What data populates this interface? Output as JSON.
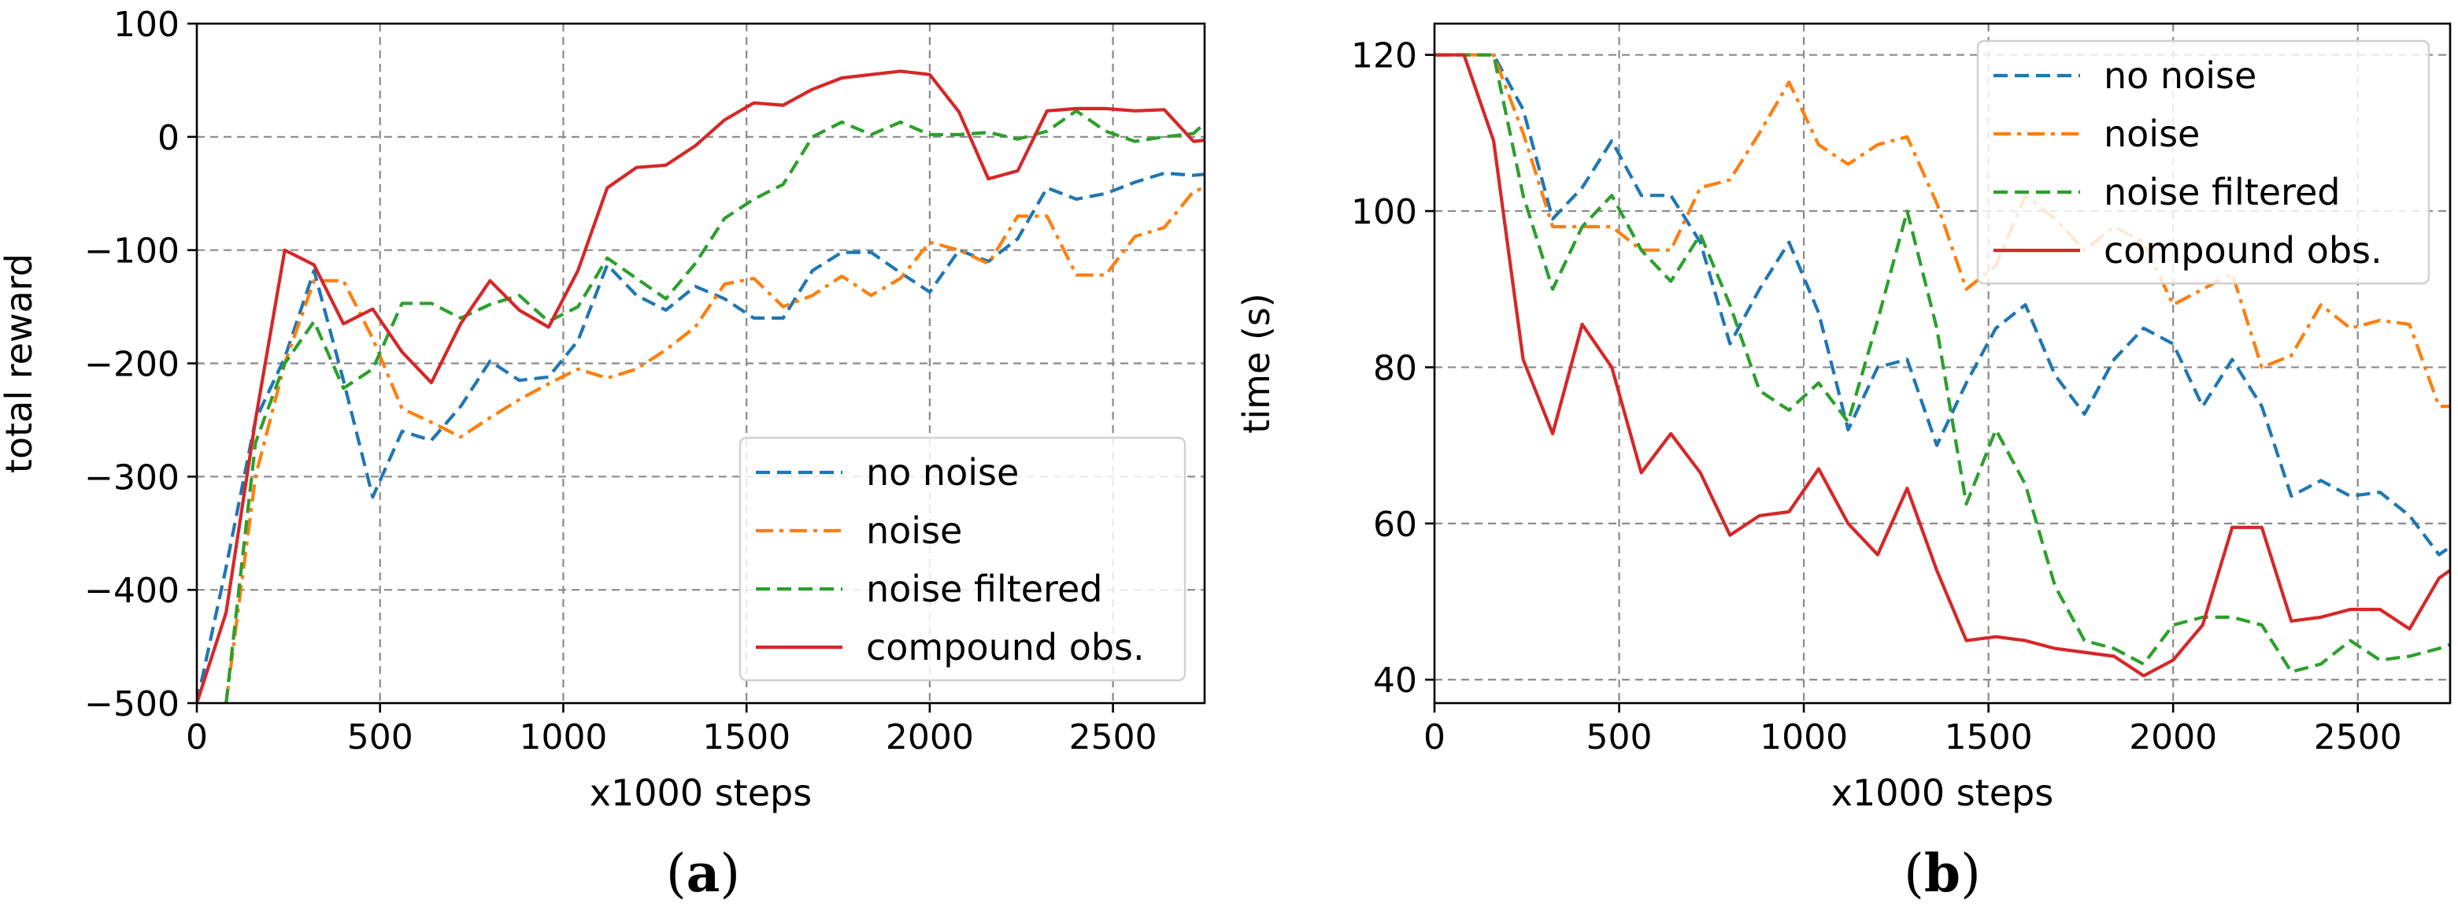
{
  "chart_data": [
    {
      "type": "line",
      "panel_label": "a",
      "title": "",
      "xlabel": "x1000 steps",
      "ylabel": "total reward",
      "xlim": [
        0,
        2750
      ],
      "ylim": [
        -500,
        100
      ],
      "xticks": [
        0,
        500,
        1000,
        1500,
        2000,
        2500
      ],
      "yticks": [
        -500,
        -400,
        -300,
        -200,
        -100,
        0,
        100
      ],
      "xtick_labels": [
        "0",
        "500",
        "1000",
        "1500",
        "2000",
        "2500"
      ],
      "ytick_labels": [
        "−500",
        "−400",
        "−300",
        "−200",
        "−100",
        "0",
        "100"
      ],
      "grid": true,
      "legend_position": "lower-right",
      "series": [
        {
          "name": "no noise",
          "color": "#1f77b4",
          "style": "dashed",
          "x": [
            0,
            80,
            160,
            240,
            320,
            400,
            480,
            560,
            640,
            720,
            800,
            880,
            960,
            1040,
            1120,
            1200,
            1280,
            1360,
            1440,
            1520,
            1600,
            1680,
            1760,
            1840,
            1920,
            2000,
            2080,
            2160,
            2240,
            2320,
            2400,
            2480,
            2560,
            2640,
            2720,
            2750
          ],
          "y": [
            -500,
            -380,
            -250,
            -195,
            -118,
            -215,
            -318,
            -260,
            -268,
            -238,
            -198,
            -215,
            -212,
            -180,
            -113,
            -140,
            -153,
            -132,
            -143,
            -160,
            -160,
            -118,
            -102,
            -102,
            -120,
            -137,
            -100,
            -110,
            -90,
            -45,
            -55,
            -50,
            -40,
            -32,
            -34,
            -33
          ]
        },
        {
          "name": "noise",
          "color": "#ff7f0e",
          "style": "dashdot",
          "x": [
            80,
            160,
            240,
            320,
            400,
            480,
            560,
            640,
            720,
            800,
            880,
            960,
            1040,
            1120,
            1200,
            1280,
            1360,
            1440,
            1520,
            1600,
            1680,
            1760,
            1840,
            1920,
            2000,
            2080,
            2160,
            2240,
            2320,
            2400,
            2480,
            2560,
            2640,
            2720,
            2750
          ],
          "y": [
            -500,
            -300,
            -200,
            -127,
            -127,
            -178,
            -240,
            -252,
            -265,
            -248,
            -232,
            -218,
            -205,
            -213,
            -205,
            -188,
            -168,
            -130,
            -125,
            -150,
            -140,
            -123,
            -140,
            -125,
            -93,
            -100,
            -112,
            -70,
            -70,
            -122,
            -122,
            -88,
            -80,
            -48,
            -45
          ]
        },
        {
          "name": "noise filtered",
          "color": "#2ca02c",
          "style": "dashed",
          "x": [
            80,
            160,
            240,
            320,
            400,
            480,
            560,
            640,
            720,
            800,
            880,
            960,
            1040,
            1120,
            1200,
            1280,
            1360,
            1440,
            1520,
            1600,
            1680,
            1760,
            1840,
            1920,
            2000,
            2080,
            2160,
            2240,
            2320,
            2400,
            2480,
            2560,
            2640,
            2720,
            2750
          ],
          "y": [
            -500,
            -270,
            -200,
            -163,
            -222,
            -205,
            -147,
            -147,
            -160,
            -148,
            -140,
            -163,
            -150,
            -107,
            -125,
            -143,
            -112,
            -72,
            -55,
            -42,
            0,
            13,
            2,
            13,
            2,
            2,
            4,
            -2,
            5,
            23,
            5,
            -4,
            0,
            3,
            12
          ]
        },
        {
          "name": "compound obs.",
          "color": "#d62728",
          "style": "solid",
          "x": [
            0,
            80,
            160,
            240,
            320,
            400,
            480,
            560,
            640,
            720,
            800,
            880,
            960,
            1040,
            1120,
            1200,
            1280,
            1360,
            1440,
            1520,
            1600,
            1680,
            1760,
            1840,
            1920,
            2000,
            2080,
            2160,
            2240,
            2320,
            2400,
            2480,
            2560,
            2640,
            2720,
            2750
          ],
          "y": [
            -500,
            -420,
            -250,
            -100,
            -113,
            -165,
            -152,
            -190,
            -217,
            -165,
            -127,
            -153,
            -168,
            -118,
            -45,
            -27,
            -25,
            -8,
            15,
            30,
            28,
            42,
            52,
            55,
            58,
            55,
            22,
            -37,
            -30,
            23,
            25,
            25,
            23,
            24,
            -4,
            -3
          ]
        }
      ]
    },
    {
      "type": "line",
      "panel_label": "b",
      "title": "",
      "xlabel": "x1000 steps",
      "ylabel": "time (s)",
      "xlim": [
        0,
        2750
      ],
      "ylim": [
        37,
        124
      ],
      "xticks": [
        0,
        500,
        1000,
        1500,
        2000,
        2500
      ],
      "yticks": [
        40,
        60,
        80,
        100,
        120
      ],
      "xtick_labels": [
        "0",
        "500",
        "1000",
        "1500",
        "2000",
        "2500"
      ],
      "ytick_labels": [
        "40",
        "60",
        "80",
        "100",
        "120"
      ],
      "grid": true,
      "legend_position": "top-right",
      "series": [
        {
          "name": "no noise",
          "color": "#1f77b4",
          "style": "dashed",
          "x": [
            0,
            80,
            160,
            240,
            320,
            400,
            480,
            560,
            640,
            720,
            800,
            880,
            960,
            1040,
            1120,
            1200,
            1280,
            1360,
            1440,
            1520,
            1600,
            1680,
            1760,
            1840,
            1920,
            2000,
            2080,
            2160,
            2240,
            2320,
            2400,
            2480,
            2560,
            2640,
            2720,
            2750
          ],
          "y": [
            120,
            120,
            120,
            113,
            99,
            103,
            109,
            102,
            102,
            96,
            83,
            90,
            96,
            87,
            72,
            80,
            81,
            70,
            78,
            85,
            88,
            79,
            74,
            81,
            85,
            83,
            75,
            81,
            75,
            63.5,
            65.5,
            63.5,
            64,
            61,
            56,
            57
          ]
        },
        {
          "name": "noise",
          "color": "#ff7f0e",
          "style": "dashdot",
          "x": [
            0,
            80,
            160,
            240,
            320,
            400,
            480,
            560,
            640,
            720,
            800,
            880,
            960,
            1040,
            1120,
            1200,
            1280,
            1360,
            1440,
            1520,
            1600,
            1680,
            1760,
            1840,
            1920,
            2000,
            2080,
            2160,
            2240,
            2320,
            2400,
            2480,
            2560,
            2640,
            2720,
            2750
          ],
          "y": [
            120,
            120,
            120,
            110,
            98,
            98,
            98,
            95,
            95,
            103,
            104,
            110,
            116.5,
            108.5,
            106,
            108.5,
            109.5,
            101,
            90,
            93,
            102,
            99,
            95,
            98,
            96,
            88,
            90,
            92,
            80,
            81.5,
            88,
            85,
            86,
            85.5,
            75,
            75
          ]
        },
        {
          "name": "noise filtered",
          "color": "#2ca02c",
          "style": "dashed",
          "x": [
            0,
            80,
            160,
            240,
            320,
            400,
            480,
            560,
            640,
            720,
            800,
            880,
            960,
            1040,
            1120,
            1200,
            1280,
            1360,
            1440,
            1520,
            1600,
            1680,
            1760,
            1840,
            1920,
            2000,
            2080,
            2160,
            2240,
            2320,
            2400,
            2480,
            2560,
            2640,
            2720,
            2750
          ],
          "y": [
            120,
            120,
            120,
            102,
            90,
            98,
            102,
            95,
            91,
            97,
            88,
            77,
            74.5,
            78,
            73,
            86,
            100,
            85,
            62.5,
            72,
            65,
            52,
            45,
            44,
            42,
            47,
            48,
            48,
            47,
            41,
            42,
            45,
            42.5,
            43,
            44,
            44.5
          ]
        },
        {
          "name": "compound obs.",
          "color": "#d62728",
          "style": "solid",
          "x": [
            0,
            80,
            160,
            240,
            320,
            400,
            480,
            560,
            640,
            720,
            800,
            880,
            960,
            1040,
            1120,
            1200,
            1280,
            1360,
            1440,
            1520,
            1600,
            1680,
            1760,
            1840,
            1920,
            2000,
            2080,
            2160,
            2240,
            2320,
            2400,
            2480,
            2560,
            2640,
            2720,
            2750
          ],
          "y": [
            120,
            120,
            109,
            81,
            71.5,
            85.5,
            80,
            66.5,
            71.5,
            66.5,
            58.5,
            61,
            61.5,
            67,
            60,
            56,
            64.5,
            54,
            45,
            45.5,
            45,
            44,
            43.5,
            43,
            40.5,
            42.5,
            47,
            59.5,
            59.5,
            47.5,
            48,
            49,
            49,
            46.5,
            53,
            54
          ]
        }
      ]
    }
  ]
}
